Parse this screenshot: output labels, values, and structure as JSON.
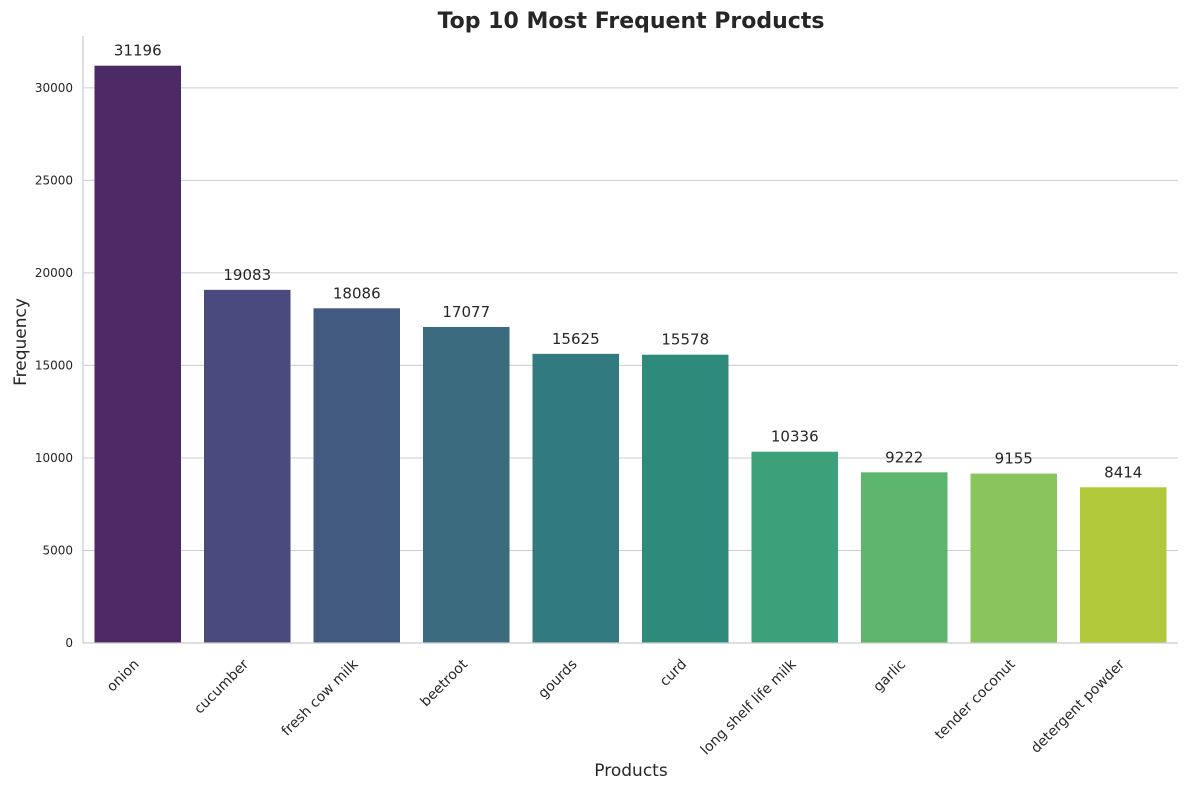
{
  "chart_data": {
    "type": "bar",
    "title": "Top 10 Most Frequent Products",
    "xlabel": "Products",
    "ylabel": "Frequency",
    "categories": [
      "onion",
      "cucumber",
      "fresh cow milk",
      "beetroot",
      "gourds",
      "curd",
      "long shelf life milk",
      "garlic",
      "tender coconut",
      "detergent powder"
    ],
    "values": [
      31196,
      19083,
      18086,
      17077,
      15625,
      15578,
      10336,
      9222,
      9155,
      8414
    ],
    "data_labels": [
      "31196",
      "19083",
      "18086",
      "17077",
      "15625",
      "15578",
      "10336",
      "9222",
      "9155",
      "8414"
    ],
    "ylim": [
      0,
      32800
    ],
    "yticks": [
      0,
      5000,
      10000,
      15000,
      20000,
      25000,
      30000
    ],
    "ytick_labels": [
      "0",
      "5000",
      "10000",
      "15000",
      "20000",
      "25000",
      "30000"
    ],
    "grid": "horizontal",
    "colors": [
      "#4b2a66",
      "#4a4a7e",
      "#435a80",
      "#3a6b7e",
      "#317a7f",
      "#2e8b7c",
      "#3ca078",
      "#5db56e",
      "#89c45c",
      "#b0c83a"
    ]
  }
}
